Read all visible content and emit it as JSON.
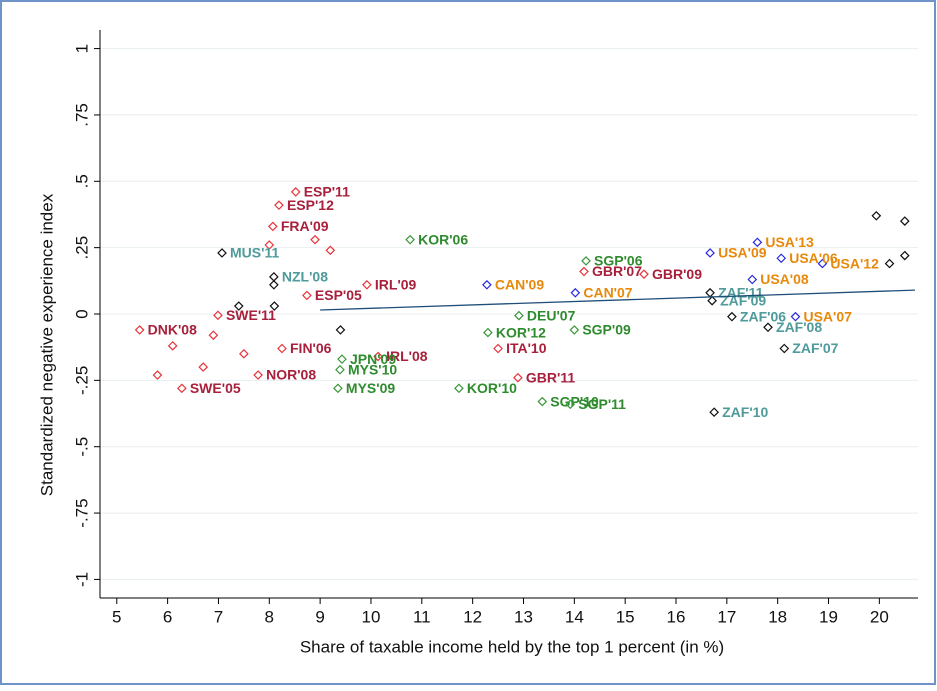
{
  "chart_data": {
    "type": "scatter",
    "xlabel": "Share of taxable income held by the top 1 percent (in %)",
    "ylabel": "Standardized negative experience index",
    "xlim": [
      4.67,
      20.76
    ],
    "ylim": [
      -1.07,
      1.07
    ],
    "xticks": [
      5,
      6,
      7,
      8,
      9,
      10,
      11,
      12,
      13,
      14,
      15,
      16,
      17,
      18,
      19,
      20
    ],
    "yticks": [
      {
        "value": -1,
        "label": "-1"
      },
      {
        "value": -0.75,
        "label": "-.75"
      },
      {
        "value": -0.5,
        "label": "-.5"
      },
      {
        "value": -0.25,
        "label": "-.25"
      },
      0,
      {
        "value": 0.25,
        "label": ".25"
      },
      {
        "value": 0.5,
        "label": ".5"
      },
      {
        "value": 0.75,
        "label": ".75"
      },
      1
    ],
    "grid": true,
    "series": [
      {
        "color": "#e8343a",
        "label_color": "#a8203c",
        "x": [
          8.52,
          8.19,
          8.07,
          8.74,
          8.25,
          10.14,
          9.92,
          6.28,
          5.45,
          7.78,
          12.89,
          12.5,
          14.19,
          15.37,
          6.99,
          6.1,
          6.7,
          5.8,
          8.9,
          9.2,
          8.0,
          6.9,
          7.5
        ],
        "y": [
          0.46,
          0.41,
          0.33,
          0.07,
          -0.13,
          -0.16,
          0.11,
          -0.28,
          -0.06,
          -0.23,
          -0.24,
          -0.13,
          0.16,
          0.15,
          -0.005,
          -0.12,
          -0.2,
          -0.23,
          0.28,
          0.24,
          0.26,
          -0.08,
          -0.15
        ],
        "labels": [
          "ESP'11",
          "ESP'12",
          "FRA'09",
          "ESP'05",
          "FIN'06",
          "IRL'08",
          "IRL'09",
          "SWE'05",
          "DNK'08",
          "NOR'08",
          "GBR'11",
          "ITA'10",
          "GBR'07",
          "GBR'09",
          "SWE'11",
          null,
          null,
          null,
          null,
          null,
          null,
          null,
          null
        ]
      },
      {
        "color": "#3a963a",
        "label_color": "#2e8b2e",
        "x": [
          10.77,
          14.23,
          14.0,
          11.73,
          13.37,
          13.92,
          9.35,
          9.39,
          9.43,
          12.3,
          12.91
        ],
        "y": [
          0.28,
          0.2,
          -0.06,
          -0.28,
          -0.33,
          -0.34,
          -0.28,
          -0.21,
          -0.17,
          -0.07,
          -0.006
        ],
        "labels": [
          "KOR'06",
          "SGP'06",
          "SGP'09",
          "KOR'10",
          "SGP'10",
          "SGP'11",
          "MYS'09",
          "MYS'10",
          "JPN'09",
          "KOR'12",
          "DEU'07"
        ]
      },
      {
        "color": "#2a2ae0",
        "label_color": "#e8890c",
        "x": [
          17.6,
          18.88,
          18.07,
          16.67,
          17.5,
          18.35,
          12.28,
          14.02
        ],
        "y": [
          0.27,
          0.19,
          0.21,
          0.23,
          0.13,
          -0.01,
          0.11,
          0.08
        ],
        "labels": [
          "USA'13",
          "USA'12",
          "USA'06",
          "USA'09",
          "USA'08",
          "USA'07",
          "CAN'09",
          "CAN'07"
        ]
      },
      {
        "color": "#111111",
        "label_color": "#4f9a9a",
        "x": [
          16.75,
          18.13,
          17.81,
          17.1,
          16.71,
          16.67,
          8.09,
          7.07,
          19.94,
          20.5,
          20.5,
          20.2,
          8.09,
          7.4,
          8.1,
          9.4
        ],
        "y": [
          -0.37,
          -0.13,
          -0.05,
          -0.01,
          0.05,
          0.08,
          0.14,
          0.23,
          0.37,
          0.35,
          0.22,
          0.19,
          0.11,
          0.03,
          0.03,
          -0.06
        ],
        "labels": [
          "ZAF'10",
          "ZAF'07",
          "ZAF'08",
          "ZAF'06",
          "ZAF'09",
          "ZAF'11",
          "NZL'08",
          "MUS'11",
          null,
          null,
          null,
          null,
          null,
          null,
          null,
          null
        ]
      }
    ],
    "fit": {
      "color": "#1f4e79",
      "x": [
        9,
        20.7
      ],
      "y": [
        0.015,
        0.09
      ]
    }
  }
}
